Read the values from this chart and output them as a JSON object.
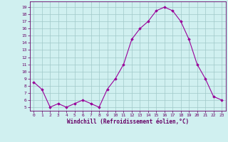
{
  "x": [
    0,
    1,
    2,
    3,
    4,
    5,
    6,
    7,
    8,
    9,
    10,
    11,
    12,
    13,
    14,
    15,
    16,
    17,
    18,
    19,
    20,
    21,
    22,
    23
  ],
  "y": [
    8.5,
    7.5,
    5.0,
    5.5,
    5.0,
    5.5,
    6.0,
    5.5,
    5.0,
    7.5,
    9.0,
    11.0,
    14.5,
    16.0,
    17.0,
    18.5,
    19.0,
    18.5,
    17.0,
    14.5,
    11.0,
    9.0,
    6.5,
    6.0
  ],
  "line_color": "#990099",
  "marker": "D",
  "marker_size": 1.8,
  "bg_color": "#d0f0f0",
  "grid_color": "#a0c8c8",
  "xlabel": "Windchill (Refroidissement éolien,°C)",
  "yticks": [
    5,
    6,
    7,
    8,
    9,
    10,
    11,
    12,
    13,
    14,
    15,
    16,
    17,
    18,
    19
  ],
  "xticks": [
    0,
    1,
    2,
    3,
    4,
    5,
    6,
    7,
    8,
    9,
    10,
    11,
    12,
    13,
    14,
    15,
    16,
    17,
    18,
    19,
    20,
    21,
    22,
    23
  ],
  "ylim": [
    4.5,
    19.8
  ],
  "xlim": [
    -0.5,
    23.5
  ],
  "axis_color": "#660066",
  "font_color": "#660066"
}
